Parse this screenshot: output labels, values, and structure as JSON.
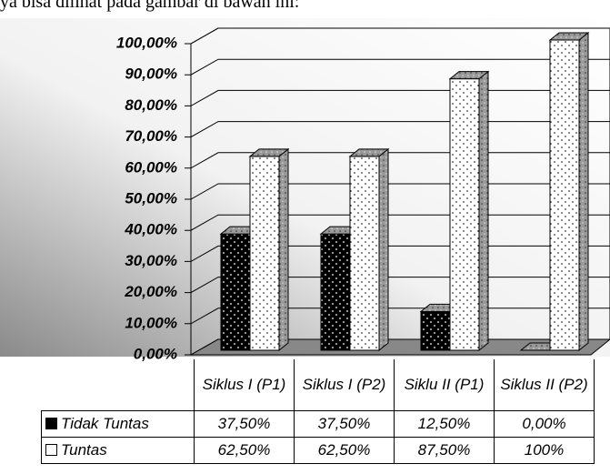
{
  "caption": "ya bisa dilihat pada gambar di bawah ini:",
  "chart_data": {
    "type": "bar3d",
    "categories": [
      "Siklus I (P1)",
      "Siklus I (P2)",
      "Siklu II (P1)",
      "Siklus II (P2)"
    ],
    "series": [
      {
        "name": "Tidak Tuntas",
        "color": "#000000",
        "values": [
          37.5,
          37.5,
          12.5,
          0
        ],
        "value_labels": [
          "37,50%",
          "37,50%",
          "12,50%",
          "0,00%"
        ]
      },
      {
        "name": "Tuntas",
        "color": "#ffffff",
        "values": [
          62.5,
          62.5,
          87.5,
          100
        ],
        "value_labels": [
          "62,50%",
          "62,50%",
          "87,50%",
          "100%"
        ]
      }
    ],
    "ylim": [
      0,
      100
    ],
    "yticks": [
      {
        "value": 0,
        "label": "0,00%"
      },
      {
        "value": 10,
        "label": "10,00%"
      },
      {
        "value": 20,
        "label": "20,00%"
      },
      {
        "value": 30,
        "label": "30,00%"
      },
      {
        "value": 40,
        "label": "40,00%"
      },
      {
        "value": 50,
        "label": "50,00%"
      },
      {
        "value": 60,
        "label": "60,00%"
      },
      {
        "value": 70,
        "label": "70,00%"
      },
      {
        "value": 80,
        "label": "80,00%"
      },
      {
        "value": 90,
        "label": "90,00%"
      },
      {
        "value": 100,
        "label": "100,00%"
      }
    ],
    "grid": true
  }
}
